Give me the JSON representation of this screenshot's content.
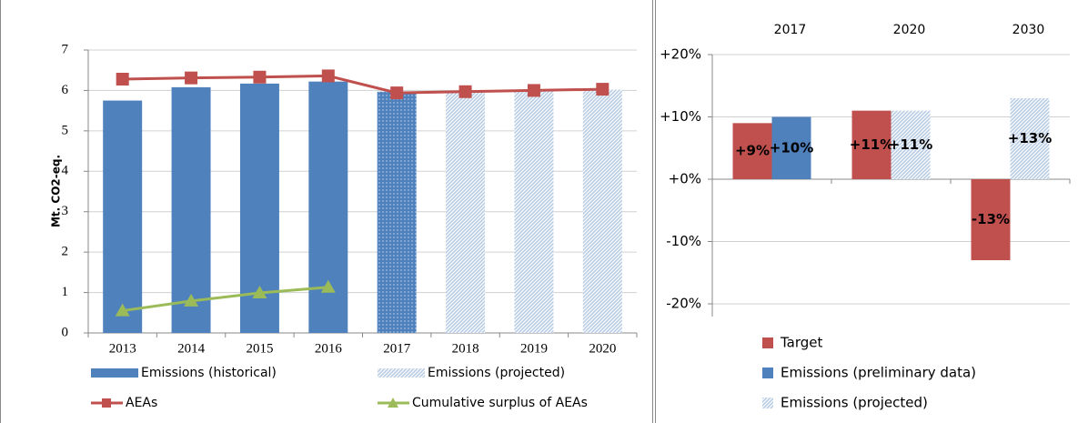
{
  "chart_data": [
    {
      "type": "bar-line",
      "y_label": "Mt. CO2-eq.",
      "categories": [
        "2013",
        "2014",
        "2015",
        "2016",
        "2017",
        "2018",
        "2019",
        "2020"
      ],
      "ylim": [
        0,
        7
      ],
      "yticks": [
        0,
        1,
        2,
        3,
        4,
        5,
        6,
        7
      ],
      "grid": true,
      "series": [
        {
          "name": "Emissions (historical)",
          "kind": "bar",
          "color": "#4f81bd",
          "pattern": "solid",
          "patterns": [
            "solid",
            "solid",
            "solid",
            "solid",
            "dots",
            null,
            null,
            null
          ],
          "values": [
            5.75,
            6.08,
            6.17,
            6.22,
            5.97,
            null,
            null,
            null
          ]
        },
        {
          "name": "Emissions (projected)",
          "kind": "bar",
          "color": "#b8cce4",
          "pattern": "hatch",
          "values": [
            null,
            null,
            null,
            null,
            null,
            5.97,
            6.0,
            6.02
          ]
        },
        {
          "name": "AEAs",
          "kind": "line",
          "color": "#c0504d",
          "marker": "square",
          "values": [
            6.28,
            6.31,
            6.33,
            6.36,
            5.94,
            5.97,
            6.0,
            6.03
          ]
        },
        {
          "name": "Cumulative surplus of AEAs",
          "kind": "line",
          "color": "#9bbb59",
          "marker": "triangle",
          "values": [
            0.55,
            0.79,
            0.99,
            1.13,
            null,
            null,
            null,
            null
          ]
        }
      ]
    },
    {
      "type": "grouped-bar",
      "categories": [
        "2017",
        "2020",
        "2030"
      ],
      "ylim": [
        -20,
        20
      ],
      "yticks": [
        {
          "value": 20,
          "label": "+20%"
        },
        {
          "value": 10,
          "label": "+10%"
        },
        {
          "value": 0,
          "label": "+0%"
        },
        {
          "value": -10,
          "label": "-10%"
        },
        {
          "value": -20,
          "label": "-20%"
        }
      ],
      "grid": true,
      "series": [
        {
          "name": "Target",
          "color": "#c0504d",
          "pattern": "solid",
          "values": [
            9,
            11,
            -13
          ],
          "value_labels": [
            "+9%",
            "+11%",
            "-13%"
          ]
        },
        {
          "name": "Emissions (preliminary data)",
          "color": "#4f81bd",
          "pattern": "solid",
          "values": [
            10,
            null,
            null
          ],
          "value_labels": [
            "+10%",
            null,
            null
          ]
        },
        {
          "name": "Emissions (projected)",
          "color": "#b8cce4",
          "pattern": "hatch",
          "values": [
            null,
            11,
            13
          ],
          "value_labels": [
            null,
            "+11%",
            "+13%"
          ]
        }
      ]
    }
  ]
}
